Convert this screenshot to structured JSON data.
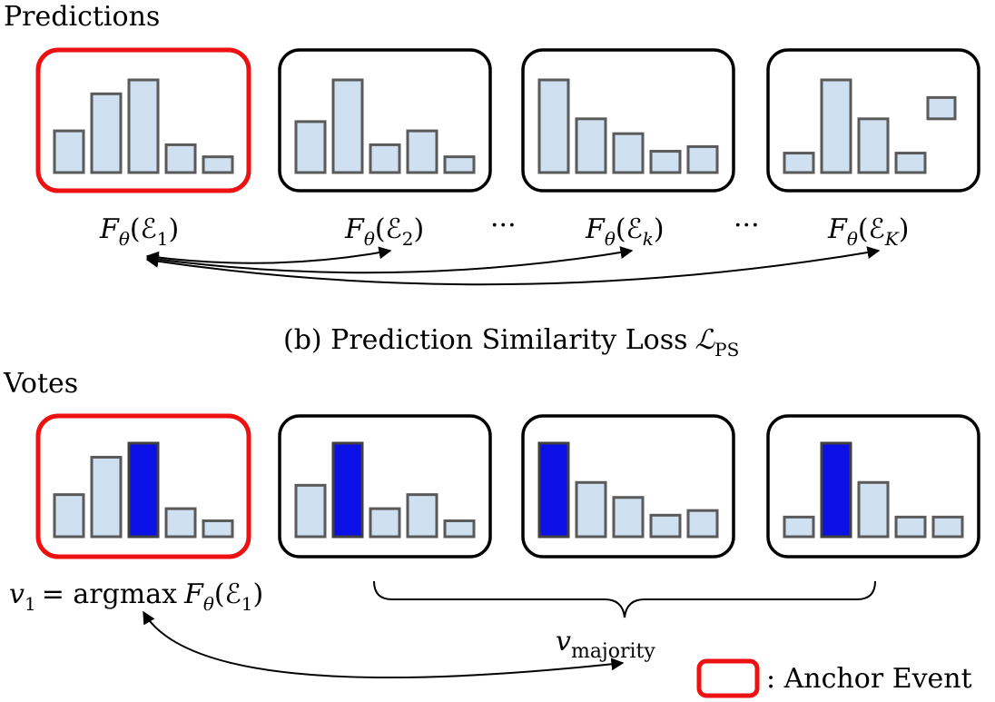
{
  "sections": {
    "predictions": {
      "title": "Predictions",
      "caption": "(b) Prediction Similarity Loss",
      "loss_symbol": "ℒ",
      "loss_subscript": "PS",
      "panels": [
        {
          "anchor": true,
          "label": {
            "fn": "F",
            "sub": "θ",
            "arg": "(ℰ",
            "argsub": "1",
            "close": ")"
          },
          "values": [
            45,
            85,
            100,
            30,
            17
          ],
          "vote_index": null
        },
        {
          "anchor": false,
          "label": {
            "fn": "F",
            "sub": "θ",
            "arg": "(ℰ",
            "argsub": "2",
            "close": ")"
          },
          "values": [
            55,
            100,
            30,
            45,
            17
          ],
          "vote_index": null
        },
        {
          "anchor": false,
          "label": {
            "fn": "F",
            "sub": "θ",
            "arg": "(ℰ",
            "argsub": "k",
            "close": ")"
          },
          "values": [
            100,
            58,
            42,
            23,
            28
          ],
          "vote_index": null
        },
        {
          "anchor": false,
          "label": {
            "fn": "F",
            "sub": "θ",
            "arg": "(ℰ",
            "argsub": "K",
            "close": ")"
          },
          "values": [
            21,
            100,
            58,
            21,
            null
          ],
          "extra_bar": {
            "value_low": 58,
            "value_high": 81
          },
          "vote_index": null
        }
      ],
      "ellipses": [
        "···",
        "···"
      ]
    },
    "votes": {
      "title": "Votes",
      "panels": [
        {
          "anchor": true,
          "values": [
            45,
            85,
            100,
            30,
            17
          ],
          "vote_index": 2
        },
        {
          "anchor": false,
          "values": [
            55,
            100,
            30,
            45,
            17
          ],
          "vote_index": 1
        },
        {
          "anchor": false,
          "values": [
            100,
            58,
            42,
            23,
            28
          ],
          "vote_index": 0
        },
        {
          "anchor": false,
          "values": [
            21,
            100,
            58,
            21,
            21
          ],
          "vote_index": 1
        }
      ],
      "anchor_label": {
        "v": "v",
        "vsub": "1",
        "eq": "= argmax",
        "fn": "F",
        "sub": "θ",
        "arg": "(ℰ",
        "argsub": "1",
        "close": ")"
      },
      "majority_label": {
        "v": "v",
        "vsub": "majority"
      }
    }
  },
  "legend": {
    "text": ": Anchor Event",
    "color": "#ee1111"
  },
  "colors": {
    "bar_fill": "#cfe0f1",
    "vote_fill": "#0a10e6",
    "anchor_border": "#ee1111",
    "panel_border": "#000000"
  }
}
